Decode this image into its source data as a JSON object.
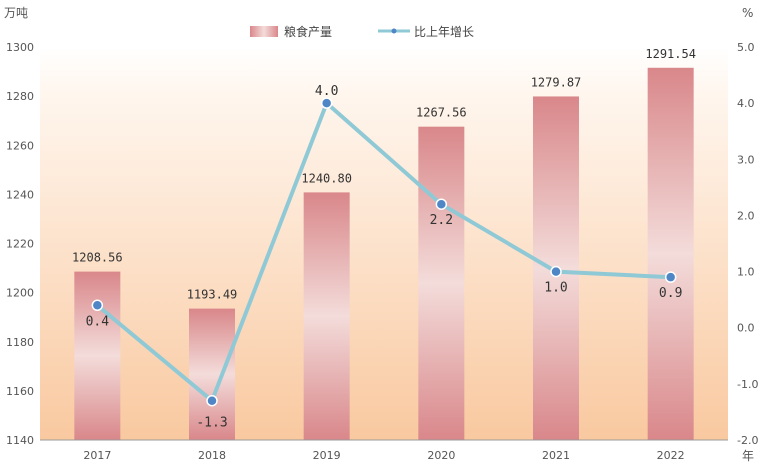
{
  "chart_data": {
    "type": "bar",
    "categories": [
      "2017",
      "2018",
      "2019",
      "2020",
      "2021",
      "2022"
    ],
    "series": [
      {
        "name": "粮食产量",
        "type": "bar",
        "axis": "left",
        "values": [
          1208.56,
          1193.49,
          1240.8,
          1267.56,
          1279.87,
          1291.54
        ],
        "labels": [
          "1208.56",
          "1193.49",
          "1240.80",
          "1267.56",
          "1279.87",
          "1291.54"
        ]
      },
      {
        "name": "比上年增长",
        "type": "line",
        "axis": "right",
        "values": [
          0.4,
          -1.3,
          4.0,
          2.2,
          1.0,
          0.9
        ],
        "labels": [
          "0.4",
          "-1.3",
          "4.0",
          "2.2",
          "1.0",
          "0.9"
        ]
      }
    ],
    "y_left": {
      "unit": "万吨",
      "min": 1140,
      "max": 1300,
      "ticks": [
        "1140",
        "1160",
        "1180",
        "1200",
        "1220",
        "1240",
        "1260",
        "1280",
        "1300"
      ]
    },
    "y_right": {
      "unit": "%",
      "min": -2.0,
      "max": 5.0,
      "ticks": [
        "-2.0",
        "-1.0",
        "0.0",
        "1.0",
        "2.0",
        "3.0",
        "4.0",
        "5.0"
      ]
    },
    "x_unit": "年",
    "grid": false,
    "legend": "top-center",
    "colors": {
      "bar": "#d9878a",
      "line": "#8fc9d6",
      "point": "#4f86c6",
      "background": "#fbd2ad"
    }
  }
}
